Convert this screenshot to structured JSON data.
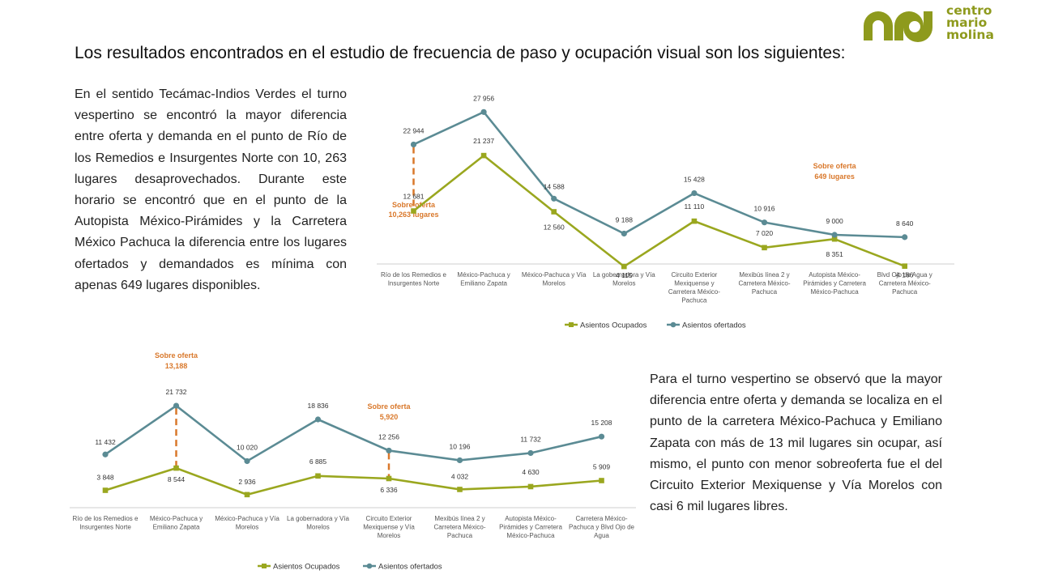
{
  "title": "Los resultados encontrados en el estudio de frecuencia de paso y ocupación visual son los siguientes:",
  "paragraph_1": "En el sentido Tecámac-Indios Verdes el turno vespertino se encontró la mayor diferencia entre oferta y demanda en el punto de Río de los Remedios e Insurgentes Norte con 10, 263 lugares desaprovechados. Durante este horario se encontró que en el punto de la Autopista México-Pirámides y la Carretera México Pachuca la diferencia entre los lugares ofertados y demandados es mínima con apenas 649 lugares disponibles.",
  "paragraph_2": "Para el turno vespertino se observó que la mayor diferencia entre oferta y demanda se localiza en el punto de la carretera México-Pachuca y Emiliano Zapata con más de 13 mil lugares sin ocupar, así mismo, el punto con menor sobreoferta fue el del Circuito Exterior Mexiquense y Vía Morelos con casi 6 mil lugares libres.",
  "logo": {
    "line1": "centro",
    "line2": "mario",
    "line3": "molina",
    "color": "#8e9a1d"
  },
  "colors": {
    "ocupados": "#9aa71f",
    "ofertados": "#5b8b94",
    "annotation": "#d9782b",
    "axis": "#cfcfcf"
  },
  "chart_data": [
    {
      "type": "line",
      "categories": [
        [
          "Río de los Remedios e",
          "Insurgentes Norte"
        ],
        [
          "México-Pachuca y",
          "Emiliano Zapata"
        ],
        [
          "México-Pachuca y Vía",
          "Morelos"
        ],
        [
          "La gobernadora y Vía",
          "Morelos"
        ],
        [
          "Circuito Exterior",
          "Mexiquense y",
          "Carretera México-",
          "Pachuca"
        ],
        [
          "Mexibús línea 2 y",
          "Carretera México-",
          "Pachuca"
        ],
        [
          "Autopista México-",
          "Pirámides y Carretera",
          "México-Pachuca"
        ],
        [
          "Blvd Ojo de Agua y",
          "Carretera México-",
          "Pachuca"
        ]
      ],
      "series": [
        {
          "name": "Asientos Ocupados",
          "values": [
            12681,
            21237,
            12560,
            4115,
            11110,
            7020,
            8351,
            4166
          ],
          "labels": [
            "12 681",
            "21 237",
            "12 560",
            "4 115",
            "11 110",
            "7 020",
            "8 351",
            "4 166"
          ]
        },
        {
          "name": "Asientos ofertados",
          "values": [
            22944,
            27956,
            14588,
            9188,
            15428,
            10916,
            9000,
            8640
          ],
          "labels": [
            "22 944",
            "27 956",
            "14 588",
            "9 188",
            "15 428",
            "10 916",
            "9 000",
            "8 640"
          ]
        }
      ],
      "ylim": [
        0,
        30000
      ],
      "legend": "bottom",
      "annotations": [
        {
          "category_index": 0,
          "lines": [
            "Sobre oferta",
            "10,263 lugares"
          ]
        },
        {
          "category_index": 6,
          "lines": [
            "Sobre oferta",
            "649 lugares"
          ]
        }
      ]
    },
    {
      "type": "line",
      "categories": [
        [
          "Río de los Remedios e",
          "Insurgentes Norte"
        ],
        [
          "México-Pachuca y",
          "Emiliano Zapata"
        ],
        [
          "México-Pachuca y Vía",
          "Morelos"
        ],
        [
          "La gobernadora y Vía",
          "Morelos"
        ],
        [
          "Circuito Exterior",
          "Mexiquense y Vía",
          "Morelos"
        ],
        [
          "Mexibús línea 2 y",
          "Carretera México-",
          "Pachuca"
        ],
        [
          "Autopista México-",
          "Pirámides y Carretera",
          "México-Pachuca"
        ],
        [
          "Carretera México-",
          "Pachuca y Blvd Ojo de",
          "Agua"
        ]
      ],
      "series": [
        {
          "name": "Asientos Ocupados",
          "values": [
            3848,
            8544,
            2936,
            6885,
            6336,
            4032,
            4630,
            5909
          ],
          "labels": [
            "3 848",
            "8 544",
            "2 936",
            "6 885",
            "6 336",
            "4 032",
            "4 630",
            "5 909"
          ]
        },
        {
          "name": "Asientos ofertados",
          "values": [
            11432,
            21732,
            10020,
            18836,
            12256,
            10196,
            11732,
            15208
          ],
          "labels": [
            "11 432",
            "21 732",
            "10 020",
            "18 836",
            "12 256",
            "10 196",
            "11 732",
            "15 208"
          ]
        }
      ],
      "ylim": [
        0,
        25000
      ],
      "legend": "bottom",
      "annotations": [
        {
          "category_index": 1,
          "lines": [
            "Sobre oferta",
            "13,188"
          ]
        },
        {
          "category_index": 4,
          "lines": [
            "Sobre oferta",
            "5,920"
          ]
        }
      ]
    }
  ]
}
